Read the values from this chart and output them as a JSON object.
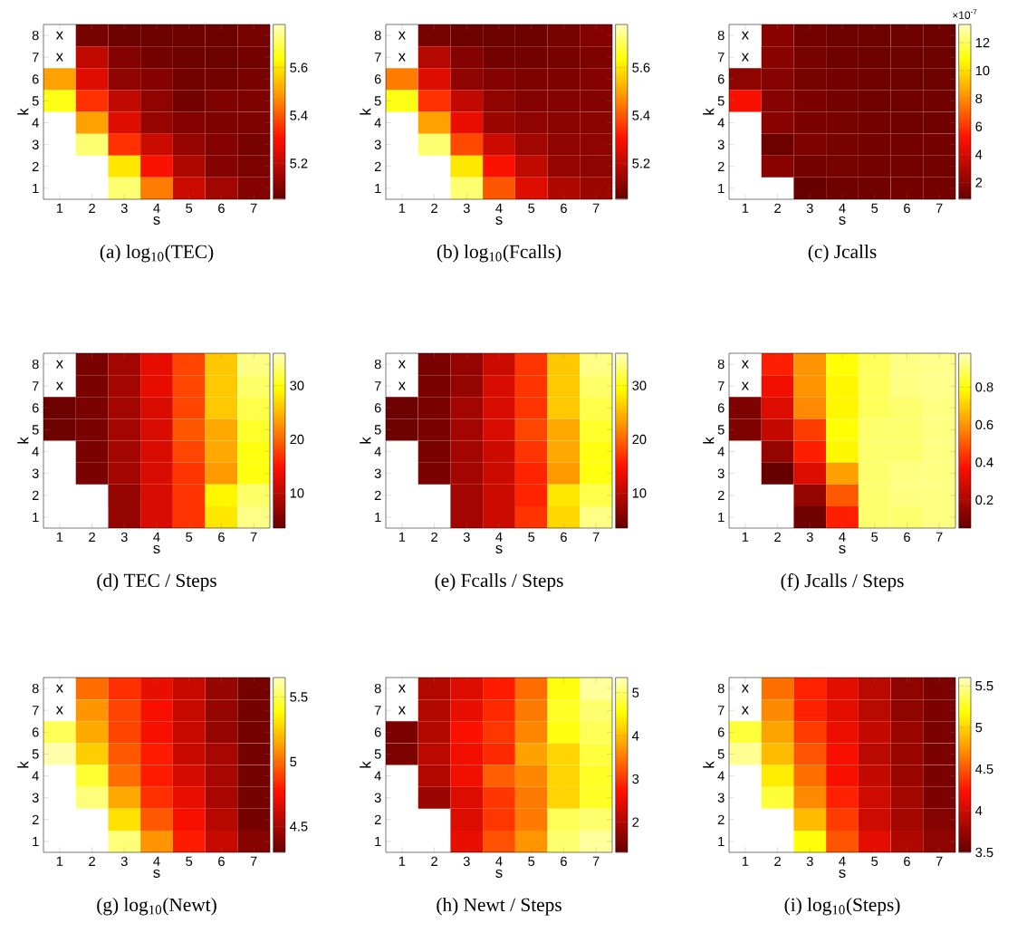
{
  "chart_data": [
    {
      "type": "heatmap",
      "title": "(a) log$_{10}$(TEC)",
      "xlabel": "s",
      "ylabel": "k",
      "categories": [
        "1",
        "2",
        "3",
        "4",
        "5",
        "6",
        "7"
      ],
      "y_categories": [
        "8",
        "7",
        "6",
        "5",
        "4",
        "3",
        "2",
        "1"
      ],
      "cells": [
        [
          null,
          5.08,
          5.06,
          5.06,
          5.06,
          5.06,
          5.08
        ],
        [
          null,
          5.2,
          5.1,
          5.07,
          5.06,
          5.06,
          5.07
        ],
        [
          5.5,
          5.25,
          5.12,
          5.1,
          5.07,
          5.07,
          5.08
        ],
        [
          5.65,
          5.35,
          5.2,
          5.12,
          5.07,
          5.09,
          5.09
        ],
        [
          null,
          5.5,
          5.25,
          5.13,
          5.1,
          5.09,
          5.09
        ],
        [
          null,
          5.72,
          5.35,
          5.22,
          5.13,
          5.1,
          5.08
        ],
        [
          null,
          null,
          5.6,
          5.3,
          5.17,
          5.1,
          5.09
        ],
        [
          null,
          null,
          5.72,
          5.45,
          5.22,
          5.15,
          5.1
        ]
      ],
      "cell_labels": [
        [
          "x",
          null,
          null,
          null,
          null,
          null,
          null
        ],
        [
          "x",
          null,
          null,
          null,
          null,
          null,
          null
        ],
        [
          null,
          null,
          null,
          null,
          null,
          null,
          null
        ],
        [
          null,
          null,
          null,
          null,
          null,
          null,
          null
        ],
        [
          null,
          null,
          null,
          null,
          null,
          null,
          null
        ],
        [
          null,
          null,
          null,
          null,
          null,
          null,
          null
        ],
        [
          null,
          null,
          null,
          null,
          null,
          null,
          null
        ],
        [
          null,
          null,
          null,
          null,
          null,
          null,
          null
        ]
      ],
      "clim": [
        5.05,
        5.78
      ],
      "cticks": [
        5.2,
        5.4,
        5.6
      ]
    },
    {
      "type": "heatmap",
      "title": "(b) log$_{10}$(Fcalls)",
      "xlabel": "s",
      "ylabel": "k",
      "categories": [
        "1",
        "2",
        "3",
        "4",
        "5",
        "6",
        "7"
      ],
      "y_categories": [
        "8",
        "7",
        "6",
        "5",
        "4",
        "3",
        "2",
        "1"
      ],
      "cells": [
        [
          null,
          5.08,
          5.06,
          5.06,
          5.06,
          5.08,
          5.1
        ],
        [
          null,
          5.18,
          5.1,
          5.07,
          5.07,
          5.08,
          5.09
        ],
        [
          5.45,
          5.25,
          5.12,
          5.1,
          5.09,
          5.09,
          5.1
        ],
        [
          5.65,
          5.35,
          5.2,
          5.12,
          5.1,
          5.1,
          5.1
        ],
        [
          null,
          5.5,
          5.27,
          5.14,
          5.12,
          5.11,
          5.11
        ],
        [
          null,
          5.72,
          5.38,
          5.22,
          5.15,
          5.12,
          5.12
        ],
        [
          null,
          null,
          5.6,
          5.3,
          5.2,
          5.13,
          5.12
        ],
        [
          null,
          null,
          5.72,
          5.4,
          5.25,
          5.17,
          5.14
        ]
      ],
      "cell_labels": [
        [
          "x",
          null,
          null,
          null,
          null,
          null,
          null
        ],
        [
          "x",
          null,
          null,
          null,
          null,
          null,
          null
        ],
        [
          null,
          null,
          null,
          null,
          null,
          null,
          null
        ],
        [
          null,
          null,
          null,
          null,
          null,
          null,
          null
        ],
        [
          null,
          null,
          null,
          null,
          null,
          null,
          null
        ],
        [
          null,
          null,
          null,
          null,
          null,
          null,
          null
        ],
        [
          null,
          null,
          null,
          null,
          null,
          null,
          null
        ],
        [
          null,
          null,
          null,
          null,
          null,
          null,
          null
        ]
      ],
      "clim": [
        5.05,
        5.78
      ],
      "cticks": [
        5.2,
        5.4,
        5.6
      ]
    },
    {
      "type": "heatmap",
      "title": "(c) Jcalls",
      "xlabel": "s",
      "ylabel": "k",
      "categories": [
        "1",
        "2",
        "3",
        "4",
        "5",
        "6",
        "7"
      ],
      "y_categories": [
        "8",
        "7",
        "6",
        "5",
        "4",
        "3",
        "2",
        "1"
      ],
      "cells": [
        [
          null,
          1.8,
          1.2,
          1.0,
          1.0,
          1.0,
          1.0
        ],
        [
          null,
          1.8,
          1.3,
          1.1,
          1.0,
          1.0,
          1.0
        ],
        [
          2.0,
          1.7,
          1.3,
          1.2,
          1.1,
          1.0,
          1.0
        ],
        [
          5.0,
          1.7,
          1.4,
          1.2,
          1.1,
          1.1,
          1.1
        ],
        [
          null,
          1.8,
          1.4,
          1.3,
          1.2,
          1.1,
          1.1
        ],
        [
          null,
          1.0,
          1.5,
          1.3,
          1.2,
          1.2,
          1.2
        ],
        [
          null,
          1.8,
          1.2,
          1.3,
          1.2,
          1.2,
          1.2
        ],
        [
          null,
          null,
          0.9,
          1.1,
          1.1,
          1.2,
          1.2
        ]
      ],
      "cell_labels": [
        [
          "x",
          null,
          null,
          null,
          null,
          null,
          null
        ],
        [
          "x",
          null,
          null,
          null,
          null,
          null,
          null
        ],
        [
          null,
          null,
          null,
          null,
          null,
          null,
          null
        ],
        [
          null,
          null,
          null,
          null,
          null,
          null,
          null
        ],
        [
          null,
          null,
          null,
          null,
          null,
          null,
          null
        ],
        [
          null,
          null,
          null,
          null,
          null,
          null,
          null
        ],
        [
          null,
          null,
          null,
          null,
          null,
          null,
          null
        ],
        [
          null,
          null,
          null,
          null,
          null,
          null,
          null
        ]
      ],
      "clim": [
        0.8,
        13.3
      ],
      "cticks": [
        2,
        4,
        6,
        8,
        10,
        12
      ],
      "annotations": [
        "×10$^{-7}$"
      ]
    },
    {
      "type": "heatmap",
      "title": "(d) TEC / Steps",
      "xlabel": "s",
      "ylabel": "k",
      "categories": [
        "1",
        "2",
        "3",
        "4",
        "5",
        "6",
        "7"
      ],
      "y_categories": [
        "8",
        "7",
        "6",
        "5",
        "4",
        "3",
        "2",
        "1"
      ],
      "cells": [
        [
          null,
          5,
          8,
          13,
          18,
          26,
          34
        ],
        [
          null,
          5,
          8,
          13,
          18,
          26,
          33
        ],
        [
          4,
          5,
          8,
          12,
          18,
          26,
          32
        ],
        [
          4,
          5,
          8,
          12,
          19,
          24,
          31
        ],
        [
          null,
          5,
          8,
          12,
          18,
          24,
          30
        ],
        [
          null,
          5,
          8,
          12,
          17,
          23,
          30
        ],
        [
          null,
          null,
          7,
          12,
          17,
          29,
          33
        ],
        [
          null,
          null,
          7,
          12,
          17,
          28,
          34
        ]
      ],
      "cell_labels": [
        [
          "x",
          null,
          null,
          null,
          null,
          null,
          null
        ],
        [
          "x",
          null,
          null,
          null,
          null,
          null,
          null
        ],
        [
          null,
          null,
          null,
          null,
          null,
          null,
          null
        ],
        [
          null,
          null,
          null,
          null,
          null,
          null,
          null
        ],
        [
          null,
          null,
          null,
          null,
          null,
          null,
          null
        ],
        [
          null,
          null,
          null,
          null,
          null,
          null,
          null
        ],
        [
          null,
          null,
          null,
          null,
          null,
          null,
          null
        ],
        [
          null,
          null,
          null,
          null,
          null,
          null,
          null
        ]
      ],
      "clim": [
        3.5,
        36
      ],
      "cticks": [
        10,
        20,
        30
      ]
    },
    {
      "type": "heatmap",
      "title": "(e) Fcalls / Steps",
      "xlabel": "s",
      "ylabel": "k",
      "categories": [
        "1",
        "2",
        "3",
        "4",
        "5",
        "6",
        "7"
      ],
      "y_categories": [
        "8",
        "7",
        "6",
        "5",
        "4",
        "3",
        "2",
        "1"
      ],
      "cells": [
        [
          null,
          5,
          7,
          11,
          17,
          26,
          34
        ],
        [
          null,
          5,
          7,
          12,
          17,
          26,
          33
        ],
        [
          4,
          5,
          8,
          12,
          17,
          26,
          32
        ],
        [
          4,
          5,
          8,
          12,
          18,
          24,
          31
        ],
        [
          null,
          5,
          8,
          11,
          17,
          24,
          30
        ],
        [
          null,
          5,
          8,
          11,
          16,
          23,
          30
        ],
        [
          null,
          null,
          8,
          11,
          16,
          28,
          32
        ],
        [
          null,
          null,
          8,
          11,
          17,
          27,
          34
        ]
      ],
      "cell_labels": [
        [
          "x",
          null,
          null,
          null,
          null,
          null,
          null
        ],
        [
          "x",
          null,
          null,
          null,
          null,
          null,
          null
        ],
        [
          null,
          null,
          null,
          null,
          null,
          null,
          null
        ],
        [
          null,
          null,
          null,
          null,
          null,
          null,
          null
        ],
        [
          null,
          null,
          null,
          null,
          null,
          null,
          null
        ],
        [
          null,
          null,
          null,
          null,
          null,
          null,
          null
        ],
        [
          null,
          null,
          null,
          null,
          null,
          null,
          null
        ],
        [
          null,
          null,
          null,
          null,
          null,
          null,
          null
        ]
      ],
      "clim": [
        3.5,
        36
      ],
      "cticks": [
        10,
        20,
        30
      ]
    },
    {
      "type": "heatmap",
      "title": "(f) Jcalls / Steps",
      "xlabel": "s",
      "ylabel": "k",
      "categories": [
        "1",
        "2",
        "3",
        "4",
        "5",
        "6",
        "7"
      ],
      "y_categories": [
        "8",
        "7",
        "6",
        "5",
        "4",
        "3",
        "2",
        "1"
      ],
      "cells": [
        [
          null,
          0.4,
          0.6,
          0.8,
          0.88,
          0.92,
          0.93
        ],
        [
          null,
          0.35,
          0.6,
          0.78,
          0.88,
          0.92,
          0.93
        ],
        [
          0.1,
          0.3,
          0.58,
          0.78,
          0.88,
          0.9,
          0.92
        ],
        [
          0.1,
          0.25,
          0.45,
          0.8,
          0.9,
          0.9,
          0.92
        ],
        [
          null,
          0.15,
          0.4,
          0.78,
          0.9,
          0.9,
          0.92
        ],
        [
          null,
          0.05,
          0.3,
          0.62,
          0.9,
          0.92,
          0.92
        ],
        [
          null,
          null,
          0.15,
          0.5,
          0.9,
          0.92,
          0.92
        ],
        [
          null,
          null,
          0.07,
          0.4,
          0.9,
          0.9,
          0.92
        ]
      ],
      "cell_labels": [
        [
          "x",
          null,
          null,
          null,
          null,
          null,
          null
        ],
        [
          "x",
          null,
          null,
          null,
          null,
          null,
          null
        ],
        [
          null,
          null,
          null,
          null,
          null,
          null,
          null
        ],
        [
          null,
          null,
          null,
          null,
          null,
          null,
          null
        ],
        [
          null,
          null,
          null,
          null,
          null,
          null,
          null
        ],
        [
          null,
          null,
          null,
          null,
          null,
          null,
          null
        ],
        [
          null,
          null,
          null,
          null,
          null,
          null,
          null
        ],
        [
          null,
          null,
          null,
          null,
          null,
          null,
          null
        ]
      ],
      "clim": [
        0.05,
        0.98
      ],
      "cticks": [
        0.2,
        0.4,
        0.6,
        0.8
      ]
    },
    {
      "type": "heatmap",
      "title": "(g) log$_{10}$(Newt)",
      "xlabel": "s",
      "ylabel": "k",
      "categories": [
        "1",
        "2",
        "3",
        "4",
        "5",
        "6",
        "7"
      ],
      "y_categories": [
        "8",
        "7",
        "6",
        "5",
        "4",
        "3",
        "2",
        "1"
      ],
      "cells": [
        [
          null,
          5.0,
          4.85,
          4.7,
          4.6,
          4.45,
          4.35
        ],
        [
          null,
          5.1,
          4.9,
          4.75,
          4.6,
          4.45,
          4.35
        ],
        [
          5.5,
          5.15,
          4.9,
          4.75,
          4.6,
          4.45,
          4.35
        ],
        [
          5.62,
          5.25,
          4.95,
          4.8,
          4.6,
          4.5,
          4.35
        ],
        [
          null,
          5.45,
          5.0,
          4.8,
          4.65,
          4.5,
          4.35
        ],
        [
          null,
          5.55,
          5.15,
          4.85,
          4.7,
          4.5,
          4.35
        ],
        [
          null,
          null,
          5.3,
          4.95,
          4.75,
          4.55,
          4.35
        ],
        [
          null,
          null,
          5.55,
          5.1,
          4.8,
          4.6,
          4.4
        ]
      ],
      "cell_labels": [
        [
          "x",
          null,
          null,
          null,
          null,
          null,
          null
        ],
        [
          "x",
          null,
          null,
          null,
          null,
          null,
          null
        ],
        [
          null,
          null,
          null,
          null,
          null,
          null,
          null
        ],
        [
          null,
          null,
          null,
          null,
          null,
          null,
          null
        ],
        [
          null,
          null,
          null,
          null,
          null,
          null,
          null
        ],
        [
          null,
          null,
          null,
          null,
          null,
          null,
          null
        ],
        [
          null,
          null,
          null,
          null,
          null,
          null,
          null
        ],
        [
          null,
          null,
          null,
          null,
          null,
          null,
          null
        ]
      ],
      "clim": [
        4.3,
        5.65
      ],
      "cticks": [
        4.5,
        5,
        5.5
      ]
    },
    {
      "type": "heatmap",
      "title": "(h) Newt / Steps",
      "xlabel": "s",
      "ylabel": "k",
      "categories": [
        "1",
        "2",
        "3",
        "4",
        "5",
        "6",
        "7"
      ],
      "y_categories": [
        "8",
        "7",
        "6",
        "5",
        "4",
        "3",
        "2",
        "1"
      ],
      "cells": [
        [
          null,
          2.0,
          2.4,
          2.8,
          3.4,
          4.6,
          5.2
        ],
        [
          null,
          2.0,
          2.5,
          2.9,
          3.5,
          4.7,
          5.0
        ],
        [
          1.5,
          2.0,
          2.7,
          3.0,
          3.6,
          4.6,
          4.9
        ],
        [
          1.5,
          2.1,
          2.6,
          2.9,
          3.8,
          4.2,
          4.8
        ],
        [
          null,
          2.0,
          2.6,
          3.3,
          3.6,
          4.2,
          4.7
        ],
        [
          null,
          1.8,
          2.4,
          3.0,
          3.5,
          4.2,
          4.7
        ],
        [
          null,
          null,
          2.4,
          3.0,
          3.5,
          4.9,
          5.0
        ],
        [
          null,
          null,
          2.5,
          3.2,
          3.7,
          5.0,
          5.2
        ]
      ],
      "cell_labels": [
        [
          "x",
          null,
          null,
          null,
          null,
          null,
          null
        ],
        [
          "x",
          null,
          null,
          null,
          null,
          null,
          null
        ],
        [
          null,
          null,
          null,
          null,
          null,
          null,
          null
        ],
        [
          null,
          null,
          null,
          null,
          null,
          null,
          null
        ],
        [
          null,
          null,
          null,
          null,
          null,
          null,
          null
        ],
        [
          null,
          null,
          null,
          null,
          null,
          null,
          null
        ],
        [
          null,
          null,
          null,
          null,
          null,
          null,
          null
        ],
        [
          null,
          null,
          null,
          null,
          null,
          null,
          null
        ]
      ],
      "clim": [
        1.3,
        5.35
      ],
      "cticks": [
        2,
        3,
        4,
        5
      ]
    },
    {
      "type": "heatmap",
      "title": "(i) log$_{10}$(Steps)",
      "xlabel": "s",
      "ylabel": "k",
      "categories": [
        "1",
        "2",
        "3",
        "4",
        "5",
        "6",
        "7"
      ],
      "y_categories": [
        "8",
        "7",
        "6",
        "5",
        "4",
        "3",
        "2",
        "1"
      ],
      "cells": [
        [
          null,
          4.6,
          4.3,
          4.1,
          3.9,
          3.7,
          3.6
        ],
        [
          null,
          4.7,
          4.3,
          4.1,
          3.9,
          3.7,
          3.6
        ],
        [
          5.3,
          4.8,
          4.4,
          4.15,
          3.95,
          3.75,
          3.6
        ],
        [
          5.5,
          4.9,
          4.5,
          4.2,
          3.9,
          3.75,
          3.6
        ],
        [
          null,
          5.1,
          4.6,
          4.2,
          3.95,
          3.75,
          3.6
        ],
        [
          null,
          5.3,
          4.7,
          4.3,
          4.0,
          3.8,
          3.6
        ],
        [
          null,
          null,
          4.9,
          4.4,
          4.0,
          3.8,
          3.65
        ],
        [
          null,
          null,
          5.2,
          4.5,
          4.1,
          3.85,
          3.7
        ]
      ],
      "cell_labels": [
        [
          "x",
          null,
          null,
          null,
          null,
          null,
          null
        ],
        [
          "x",
          null,
          null,
          null,
          null,
          null,
          null
        ],
        [
          null,
          null,
          null,
          null,
          null,
          null,
          null
        ],
        [
          null,
          null,
          null,
          null,
          null,
          null,
          null
        ],
        [
          null,
          null,
          null,
          null,
          null,
          null,
          null
        ],
        [
          null,
          null,
          null,
          null,
          null,
          null,
          null
        ],
        [
          null,
          null,
          null,
          null,
          null,
          null,
          null
        ],
        [
          null,
          null,
          null,
          null,
          null,
          null,
          null
        ]
      ],
      "clim": [
        3.5,
        5.6
      ],
      "cticks": [
        3.5,
        4,
        4.5,
        5,
        5.5
      ]
    }
  ]
}
